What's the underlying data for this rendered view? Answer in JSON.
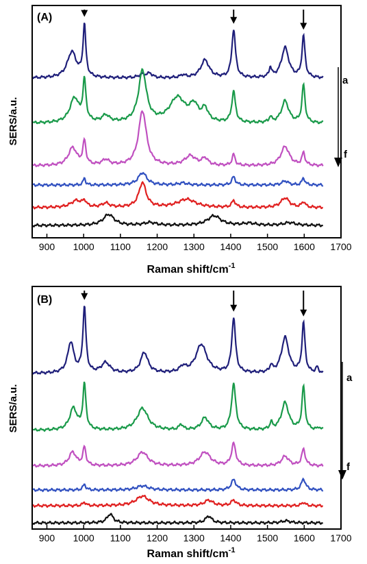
{
  "chart_data": [
    {
      "type": "line",
      "panel_label": "(A)",
      "xlabel_main": "Raman shift/cm",
      "xlabel_sup": "-1",
      "ylabel": "SERS/a.u.",
      "xlim": [
        860,
        1700
      ],
      "xticks": [
        "900",
        "1000",
        "1100",
        "1200",
        "1300",
        "1400",
        "1500",
        "1600",
        "1700"
      ],
      "peak_arrows": [
        1002,
        1408,
        1598
      ],
      "series_order_labels": {
        "top": "a",
        "bottom": "f"
      },
      "series_colors": [
        "#1f1f7a",
        "#1a9a4a",
        "#c050c0",
        "#3050c0",
        "#e02020",
        "#111111"
      ]
    },
    {
      "type": "line",
      "panel_label": "(B)",
      "xlabel_main": "Raman shift/cm",
      "xlabel_sup": "-1",
      "ylabel": "SERS/a.u.",
      "xlim": [
        860,
        1700
      ],
      "xticks": [
        "900",
        "1000",
        "1100",
        "1200",
        "1300",
        "1400",
        "1500",
        "1600",
        "1700"
      ],
      "peak_arrows": [
        1002,
        1408,
        1598
      ],
      "series_order_labels": {
        "top": "a",
        "bottom": "f"
      },
      "series_colors": [
        "#1f1f7a",
        "#1a9a4a",
        "#c050c0",
        "#3050c0",
        "#e02020",
        "#111111"
      ]
    }
  ]
}
